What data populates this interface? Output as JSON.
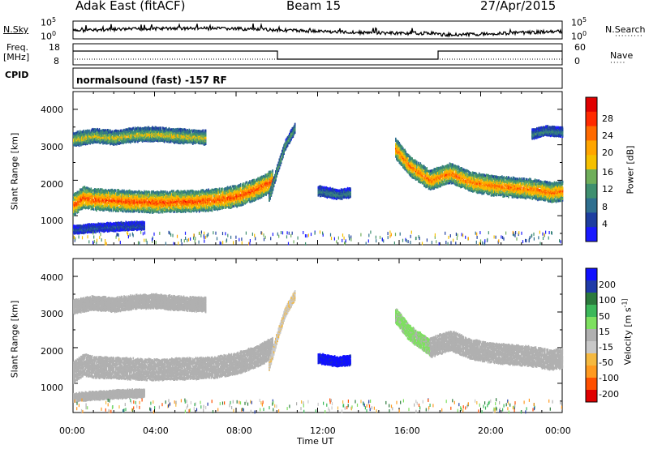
{
  "header": {
    "station": "Adak East (fitACF)",
    "beam": "Beam 15",
    "date": "27/Apr/2015"
  },
  "noise_panel": {
    "left_label": "N.Sky",
    "right_label": "N.Search",
    "right_legend": "·········",
    "left_ticks": [
      "10^5",
      "10^0"
    ],
    "right_ticks": [
      "10^5",
      "10^0"
    ]
  },
  "freq_panel": {
    "left_label_1": "Freq.",
    "left_label_2": "[MHz]",
    "right_label": "Nave",
    "right_legend": "·····",
    "left_ticks": [
      "18",
      "8"
    ],
    "right_ticks": [
      "60",
      "0"
    ]
  },
  "cpid_panel": {
    "left_label": "CPID",
    "mode_text": "normalsound (fast) -157 RF"
  },
  "x_axis": {
    "label": "Time UT",
    "ticks": [
      "00:00",
      "04:00",
      "08:00",
      "12:00",
      "16:00",
      "20:00",
      "00:00"
    ]
  },
  "colors": {
    "power": [
      "#1a1aff",
      "#1e3ea0",
      "#2f6f8f",
      "#3f8f6f",
      "#6fae5a",
      "#f5c000",
      "#ffa500",
      "#ff6a00",
      "#ff2a00",
      "#e00000"
    ],
    "velocity": [
      "#e00000",
      "#ff5000",
      "#ff9a20",
      "#f5b940",
      "#c8c8c8",
      "#b0b0b0",
      "#7ee060",
      "#3cb85a",
      "#2b7a3c",
      "#1f3aa8",
      "#1010ff"
    ]
  },
  "chart_data": [
    {
      "type": "heatmap",
      "title": "Power",
      "xlabel": "Time UT",
      "ylabel": "Slant Range [km]",
      "x_unit": "hours UT",
      "xlim": [
        0,
        24
      ],
      "ylim": [
        180,
        4500
      ],
      "y_ticks": [
        "1000",
        "2000",
        "3000",
        "4000"
      ],
      "colorbar": {
        "label": "Power [dB]",
        "range": [
          0,
          32
        ],
        "ticks": [
          "4",
          "8",
          "12",
          "16",
          "20",
          "24",
          "28"
        ]
      },
      "features": [
        {
          "x": [
            0.0,
            0.5,
            1.0,
            2.0,
            3.0,
            4.0,
            5.0,
            6.0,
            7.0,
            8.0,
            9.0,
            9.8
          ],
          "center_km": [
            1300,
            1520,
            1450,
            1430,
            1400,
            1380,
            1400,
            1410,
            1450,
            1550,
            1750,
            2000
          ],
          "halfwidth_km": 280,
          "peak_power": 26
        },
        {
          "x": [
            0.0,
            1.0,
            2.0,
            3.0,
            4.0,
            5.0,
            6.5
          ],
          "center_km": [
            3150,
            3250,
            3200,
            3280,
            3300,
            3250,
            3200
          ],
          "halfwidth_km": 180,
          "peak_power": 18
        },
        {
          "x": [
            9.6,
            10.0,
            10.4,
            10.9
          ],
          "center_km": [
            1500,
            2300,
            3000,
            3500
          ],
          "halfwidth_km": 120,
          "peak_power": 14
        },
        {
          "x": [
            12.0,
            12.5,
            13.0,
            13.6
          ],
          "center_km": [
            1700,
            1650,
            1600,
            1650
          ],
          "halfwidth_km": 120,
          "peak_power": 10
        },
        {
          "x": [
            15.8,
            16.5,
            17.5,
            18.5,
            19.5,
            20.5,
            21.5,
            22.5,
            23.5,
            24.0
          ],
          "center_km": [
            2900,
            2400,
            2000,
            2200,
            1950,
            1850,
            1800,
            1750,
            1650,
            1700
          ],
          "halfwidth_km": 260,
          "peak_power": 24
        },
        {
          "x": [
            22.5,
            23.2,
            24.0
          ],
          "center_km": [
            3300,
            3400,
            3350
          ],
          "halfwidth_km": 120,
          "peak_power": 10
        },
        {
          "x": [
            0.0,
            1.0,
            2.5,
            3.5
          ],
          "center_km": [
            600,
            650,
            700,
            720
          ],
          "halfwidth_km": 100,
          "peak_power": 6
        }
      ]
    },
    {
      "type": "heatmap",
      "title": "Velocity",
      "xlabel": "Time UT",
      "ylabel": "Slant Range [km]",
      "x_unit": "hours UT",
      "xlim": [
        0,
        24
      ],
      "ylim": [
        180,
        4500
      ],
      "y_ticks": [
        "1000",
        "2000",
        "3000",
        "4000"
      ],
      "colorbar": {
        "label": "Velocity [m s^-1]",
        "range": [
          -250,
          250
        ],
        "ticks": [
          "200",
          "100",
          "50",
          "15",
          "-15",
          "-50",
          "-100",
          "-200"
        ]
      },
      "features": [
        {
          "x": [
            0.0,
            0.5,
            1.0,
            2.0,
            3.0,
            4.0,
            5.0,
            6.0,
            7.0,
            8.0,
            9.0,
            9.8
          ],
          "center_km": [
            1300,
            1520,
            1450,
            1430,
            1400,
            1380,
            1400,
            1410,
            1450,
            1550,
            1750,
            2000
          ],
          "halfwidth_km": 280,
          "velocity": 0
        },
        {
          "x": [
            0.0,
            1.0,
            2.0,
            3.0,
            4.0,
            5.0,
            6.5
          ],
          "center_km": [
            3150,
            3250,
            3200,
            3280,
            3300,
            3250,
            3200
          ],
          "halfwidth_km": 180,
          "velocity": 0
        },
        {
          "x": [
            9.6,
            10.0,
            10.4,
            10.9
          ],
          "center_km": [
            1500,
            2300,
            3000,
            3500
          ],
          "halfwidth_km": 120,
          "velocity": -60
        },
        {
          "x": [
            12.0,
            12.5,
            13.0,
            13.6
          ],
          "center_km": [
            1700,
            1650,
            1600,
            1650
          ],
          "halfwidth_km": 120,
          "velocity": 220
        },
        {
          "x": [
            15.8,
            16.5,
            17.5
          ],
          "center_km": [
            2900,
            2400,
            2000
          ],
          "halfwidth_km": 200,
          "velocity": 30
        },
        {
          "x": [
            17.5,
            18.5,
            19.5,
            20.5,
            21.5,
            22.5,
            23.5,
            24.0
          ],
          "center_km": [
            2000,
            2200,
            1950,
            1850,
            1800,
            1750,
            1650,
            1700
          ],
          "halfwidth_km": 260,
          "velocity": 0
        },
        {
          "x": [
            0.0,
            1.0,
            2.5,
            3.5
          ],
          "center_km": [
            600,
            650,
            700,
            720
          ],
          "halfwidth_km": 100,
          "velocity": 0
        }
      ]
    }
  ]
}
